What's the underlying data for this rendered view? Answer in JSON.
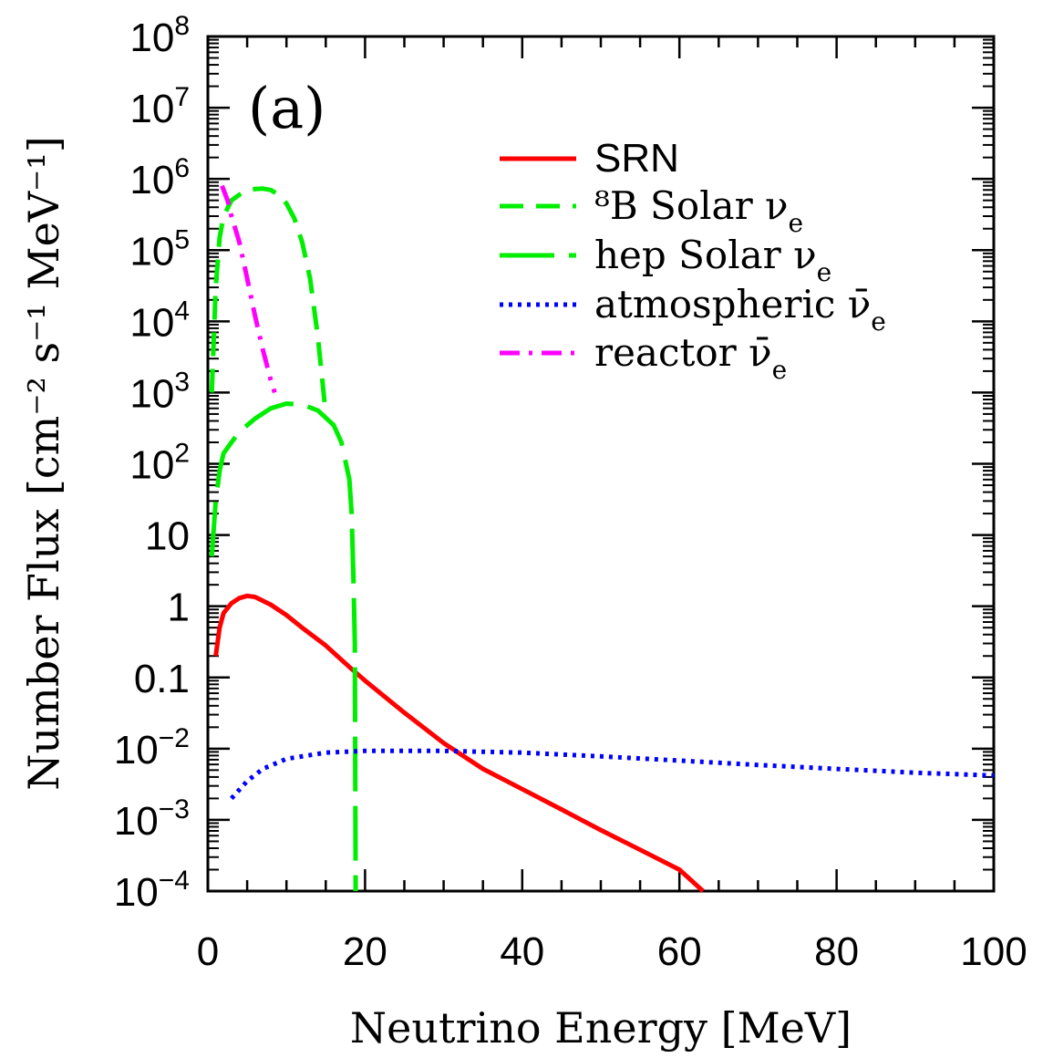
{
  "chart_data": {
    "type": "line",
    "panel_label": "(a)",
    "xlabel": "Neutrino Energy [MeV]",
    "ylabel": "Number Flux [cm⁻² s⁻¹ MeV⁻¹]",
    "xlim": [
      0,
      100
    ],
    "ylim": [
      0.0001,
      100000000
    ],
    "yscale": "log",
    "x_ticks": [
      0,
      20,
      40,
      60,
      80,
      100
    ],
    "x_tick_labels": [
      "0",
      "20",
      "40",
      "60",
      "80",
      "100"
    ],
    "y_ticks": [
      0.0001,
      0.001,
      0.01,
      0.1,
      1,
      10,
      100,
      1000,
      10000,
      100000,
      1000000,
      10000000,
      100000000
    ],
    "y_tick_labels": [
      {
        "base": "10",
        "exp": "−4"
      },
      {
        "base": "10",
        "exp": "−3"
      },
      {
        "base": "10",
        "exp": "−2"
      },
      {
        "base": "0.1",
        "exp": ""
      },
      {
        "base": "1",
        "exp": ""
      },
      {
        "base": "10",
        "exp": ""
      },
      {
        "base": "10",
        "exp": "2"
      },
      {
        "base": "10",
        "exp": "3"
      },
      {
        "base": "10",
        "exp": "4"
      },
      {
        "base": "10",
        "exp": "5"
      },
      {
        "base": "10",
        "exp": "6"
      },
      {
        "base": "10",
        "exp": "7"
      },
      {
        "base": "10",
        "exp": "8"
      }
    ],
    "grid": false,
    "legend_position": "top-right",
    "series": [
      {
        "name": "SRN",
        "color": "#ff0000",
        "style": "solid",
        "points": [
          [
            1,
            0.2
          ],
          [
            1.5,
            0.5
          ],
          [
            2,
            0.8
          ],
          [
            3,
            1.1
          ],
          [
            4,
            1.3
          ],
          [
            5,
            1.4
          ],
          [
            6,
            1.35
          ],
          [
            8,
            1.05
          ],
          [
            10,
            0.75
          ],
          [
            12,
            0.5
          ],
          [
            15,
            0.28
          ],
          [
            18,
            0.14
          ],
          [
            20,
            0.09
          ],
          [
            25,
            0.032
          ],
          [
            30,
            0.012
          ],
          [
            35,
            0.0052
          ],
          [
            40,
            0.0027
          ],
          [
            45,
            0.0014
          ],
          [
            50,
            0.00072
          ],
          [
            55,
            0.00038
          ],
          [
            60,
            0.0002
          ],
          [
            63,
            0.0001
          ]
        ]
      },
      {
        "name": "⁸B Solar ν",
        "sub": "e",
        "color": "#00ee00",
        "style": "dashed",
        "points": [
          [
            0.5,
            1000
          ],
          [
            1,
            30000
          ],
          [
            1.5,
            150000
          ],
          [
            2,
            300000
          ],
          [
            3,
            500000
          ],
          [
            4,
            600000
          ],
          [
            5,
            680000
          ],
          [
            6,
            720000
          ],
          [
            7,
            730000
          ],
          [
            8,
            700000
          ],
          [
            9,
            600000
          ],
          [
            10,
            450000
          ],
          [
            11,
            280000
          ],
          [
            12,
            130000
          ],
          [
            13,
            40000
          ],
          [
            14,
            6000
          ],
          [
            15,
            500
          ]
        ]
      },
      {
        "name": "hep Solar ν",
        "sub": "e",
        "color": "#00ee00",
        "style": "longdash",
        "points": [
          [
            0.5,
            5
          ],
          [
            1,
            30
          ],
          [
            1.5,
            80
          ],
          [
            2,
            140
          ],
          [
            3,
            200
          ],
          [
            4,
            280
          ],
          [
            6,
            430
          ],
          [
            8,
            600
          ],
          [
            10,
            700
          ],
          [
            12,
            680
          ],
          [
            14,
            560
          ],
          [
            16,
            350
          ],
          [
            17,
            200
          ],
          [
            18,
            60
          ],
          [
            18.3,
            20
          ],
          [
            18.5,
            3
          ],
          [
            18.7,
            0.3
          ],
          [
            18.8,
            0.0001
          ]
        ]
      },
      {
        "name": "atmospheric ν̄",
        "sub": "e",
        "color": "#0000ff",
        "style": "dotted",
        "points": [
          [
            3,
            0.002
          ],
          [
            5,
            0.0035
          ],
          [
            7,
            0.0052
          ],
          [
            10,
            0.0072
          ],
          [
            15,
            0.0088
          ],
          [
            20,
            0.0093
          ],
          [
            30,
            0.0093
          ],
          [
            40,
            0.0088
          ],
          [
            50,
            0.0078
          ],
          [
            60,
            0.0068
          ],
          [
            70,
            0.0059
          ],
          [
            80,
            0.0052
          ],
          [
            90,
            0.0046
          ],
          [
            100,
            0.0042
          ]
        ]
      },
      {
        "name": "reactor ν̄",
        "sub": "e",
        "color": "#ff00ff",
        "style": "dashdot",
        "points": [
          [
            1.8,
            800000
          ],
          [
            2.5,
            500000
          ],
          [
            3,
            300000
          ],
          [
            4,
            130000
          ],
          [
            5,
            40000
          ],
          [
            6,
            12000
          ],
          [
            7,
            4000
          ],
          [
            8,
            1500
          ],
          [
            8.5,
            1000
          ]
        ]
      }
    ]
  }
}
